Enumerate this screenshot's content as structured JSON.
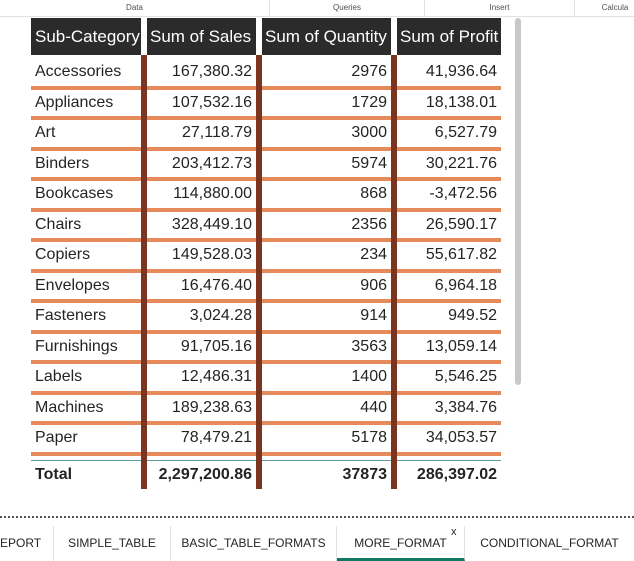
{
  "ribbon": {
    "groups": [
      "Data",
      "Queries",
      "Insert",
      "Calcula"
    ]
  },
  "table": {
    "headers": [
      "Sub-Category",
      "Sum of Sales",
      "Sum of Quantity",
      "Sum of Profit"
    ],
    "rows": [
      [
        "Accessories",
        "167,380.32",
        "2976",
        "41,936.64"
      ],
      [
        "Appliances",
        "107,532.16",
        "1729",
        "18,138.01"
      ],
      [
        "Art",
        "27,118.79",
        "3000",
        "6,527.79"
      ],
      [
        "Binders",
        "203,412.73",
        "5974",
        "30,221.76"
      ],
      [
        "Bookcases",
        "114,880.00",
        "868",
        "-3,472.56"
      ],
      [
        "Chairs",
        "328,449.10",
        "2356",
        "26,590.17"
      ],
      [
        "Copiers",
        "149,528.03",
        "234",
        "55,617.82"
      ],
      [
        "Envelopes",
        "16,476.40",
        "906",
        "6,964.18"
      ],
      [
        "Fasteners",
        "3,024.28",
        "914",
        "949.52"
      ],
      [
        "Furnishings",
        "91,705.16",
        "3563",
        "13,059.14"
      ],
      [
        "Labels",
        "12,486.31",
        "1400",
        "5,546.25"
      ],
      [
        "Machines",
        "189,238.63",
        "440",
        "3,384.76"
      ],
      [
        "Paper",
        "78,479.21",
        "5178",
        "34,053.57"
      ]
    ],
    "total": [
      "Total",
      "2,297,200.86",
      "37873",
      "286,397.02"
    ],
    "colors": {
      "header_bg": "#2b2b2b",
      "row_separator": "#e68a5c",
      "column_separator": "#7a3520"
    }
  },
  "tabs": {
    "items": [
      "EPORT",
      "SIMPLE_TABLE",
      "BASIC_TABLE_FORMATS",
      "MORE_FORMAT",
      "CONDITIONAL_FORMAT"
    ],
    "active": "MORE_FORMAT",
    "close_glyph": "x",
    "accent": "#117865"
  }
}
